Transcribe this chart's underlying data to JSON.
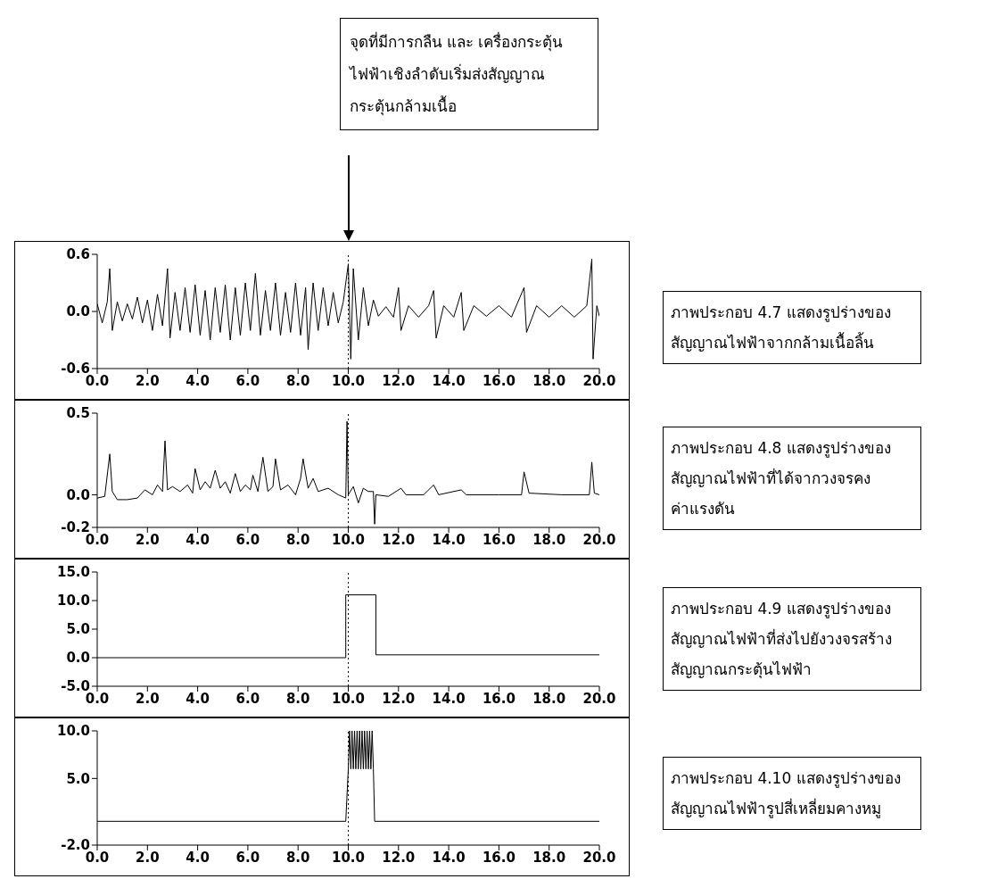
{
  "chart_data": [
    {
      "type": "line",
      "annotations": [
        "ภาพประกอบ 4.7 แสดงรูปร่างของ สัญญาณไฟฟ้าจากกล้ามเนื้อลิ้น",
        "จุดที่มีการกลืน และ เครื่องกระตุ้นไฟฟ้าเชิงลำดับเริ่มส่งสัญญาณกระตุ้นกล้ามเนื้อ"
      ],
      "x": [
        0,
        0.2,
        0.4,
        0.5,
        0.6,
        0.8,
        1.0,
        1.2,
        1.4,
        1.6,
        1.8,
        2.0,
        2.2,
        2.4,
        2.6,
        2.8,
        2.9,
        3.1,
        3.3,
        3.5,
        3.7,
        3.9,
        4.1,
        4.3,
        4.5,
        4.7,
        4.9,
        5.1,
        5.3,
        5.5,
        5.7,
        5.9,
        6.1,
        6.3,
        6.5,
        6.7,
        6.9,
        7.1,
        7.3,
        7.5,
        7.7,
        7.9,
        8.1,
        8.3,
        8.4,
        8.6,
        8.8,
        9.0,
        9.2,
        9.4,
        9.6,
        9.8,
        10.0,
        10.1,
        10.2,
        10.4,
        10.6,
        10.8,
        11.0,
        11.2,
        11.5,
        11.8,
        12.0,
        12.1,
        12.4,
        12.8,
        13.2,
        13.4,
        13.5,
        13.8,
        14.2,
        14.5,
        14.6,
        15.0,
        15.5,
        16.0,
        16.5,
        17.0,
        17.1,
        17.5,
        18.0,
        18.5,
        19.0,
        19.5,
        19.7,
        19.75,
        19.9,
        20
      ],
      "values": [
        0.08,
        -0.12,
        0.1,
        0.45,
        -0.2,
        0.1,
        -0.1,
        0.08,
        -0.08,
        0.15,
        -0.12,
        0.12,
        -0.2,
        0.18,
        -0.15,
        0.45,
        -0.28,
        0.2,
        -0.2,
        0.25,
        -0.22,
        0.28,
        -0.25,
        0.22,
        -0.3,
        0.25,
        -0.22,
        0.28,
        -0.3,
        0.25,
        -0.25,
        0.3,
        -0.2,
        0.4,
        -0.25,
        0.22,
        -0.2,
        0.3,
        -0.25,
        0.2,
        -0.22,
        0.3,
        -0.25,
        0.25,
        -0.4,
        0.3,
        -0.2,
        0.25,
        -0.15,
        0.2,
        -0.12,
        0.1,
        0.5,
        -0.5,
        0.45,
        -0.3,
        0.25,
        -0.15,
        0.12,
        -0.05,
        0.05,
        -0.06,
        0.25,
        -0.2,
        0.06,
        -0.06,
        0.06,
        0.22,
        -0.28,
        0.06,
        -0.06,
        0.2,
        -0.2,
        0.06,
        -0.05,
        0.06,
        -0.06,
        0.25,
        -0.22,
        0.06,
        -0.06,
        0.06,
        -0.06,
        0.06,
        0.55,
        -0.5,
        0.06,
        -0.05
      ],
      "color": "#000000",
      "xlim": [
        0,
        20
      ],
      "ylim": [
        -0.6,
        0.6
      ],
      "xticks": [
        {
          "value": 0,
          "label": "0.0"
        },
        {
          "value": 2,
          "label": "2.0"
        },
        {
          "value": 4,
          "label": "4.0"
        },
        {
          "value": 6,
          "label": "6.0"
        },
        {
          "value": 8,
          "label": "8.0"
        },
        {
          "value": 10,
          "label": "10.0"
        },
        {
          "value": 12,
          "label": "12.0"
        },
        {
          "value": 14,
          "label": "14.0"
        },
        {
          "value": 16,
          "label": "16.0"
        },
        {
          "value": 18,
          "label": "18.0"
        },
        {
          "value": 20,
          "label": "20.0"
        }
      ],
      "yticks": [
        -0.6,
        {
          "value": 0,
          "label": "0.0"
        },
        0.6
      ],
      "ref_lines": [
        {
          "axis": "x",
          "value": 10,
          "line_style": "dotted"
        }
      ]
    },
    {
      "type": "line",
      "annotations": [
        "ภาพประกอบ 4.8 แสดงรูปร่างของ สัญญาณไฟฟ้าที่ได้จากวงจรคงค่าแรงดัน"
      ],
      "x": [
        0,
        0.3,
        0.5,
        0.6,
        0.8,
        1.2,
        1.6,
        1.9,
        2.2,
        2.4,
        2.6,
        2.7,
        2.8,
        3.0,
        3.3,
        3.6,
        3.8,
        3.9,
        4.1,
        4.3,
        4.5,
        4.7,
        4.9,
        5.1,
        5.3,
        5.5,
        5.7,
        5.9,
        6.1,
        6.2,
        6.4,
        6.6,
        6.8,
        7.0,
        7.1,
        7.3,
        7.6,
        7.9,
        8.1,
        8.2,
        8.4,
        8.6,
        8.8,
        9.2,
        9.6,
        9.9,
        9.95,
        10.0,
        10.2,
        10.4,
        10.6,
        10.8,
        11.0,
        11.05,
        11.1,
        11.6,
        12.1,
        12.3,
        13.0,
        13.4,
        13.6,
        14.5,
        14.7,
        16.0,
        16.9,
        17.0,
        17.2,
        18.5,
        19.6,
        19.7,
        19.8,
        20
      ],
      "values": [
        -0.02,
        -0.01,
        0.25,
        0.02,
        -0.03,
        -0.03,
        -0.02,
        0.03,
        0.0,
        0.06,
        0.02,
        0.33,
        0.03,
        0.05,
        0.02,
        0.06,
        0.01,
        0.16,
        0.03,
        0.08,
        0.04,
        0.15,
        0.04,
        0.08,
        0.01,
        0.13,
        0.02,
        0.06,
        0.03,
        0.12,
        0.02,
        0.23,
        0.02,
        0.05,
        0.22,
        0.03,
        0.06,
        0.0,
        0.1,
        0.22,
        0.04,
        0.1,
        0.02,
        0.04,
        0.0,
        -0.02,
        0.45,
        0.0,
        0.05,
        -0.05,
        0.04,
        0.02,
        0.02,
        -0.18,
        0.0,
        -0.01,
        0.04,
        0.0,
        0.0,
        0.06,
        0.0,
        0.03,
        0.0,
        0.0,
        0.0,
        0.14,
        0.01,
        0.0,
        0.0,
        0.2,
        0.01,
        0.0
      ],
      "color": "#000000",
      "xlim": [
        0,
        20
      ],
      "ylim": [
        -0.2,
        0.5
      ],
      "xticks": [
        {
          "value": 0,
          "label": "0.0"
        },
        {
          "value": 2,
          "label": "2.0"
        },
        {
          "value": 4,
          "label": "4.0"
        },
        {
          "value": 6,
          "label": "6.0"
        },
        {
          "value": 8,
          "label": "8.0"
        },
        {
          "value": 10,
          "label": "10.0"
        },
        {
          "value": 12,
          "label": "12.0"
        },
        {
          "value": 14,
          "label": "14.0"
        },
        {
          "value": 16,
          "label": "16.0"
        },
        {
          "value": 18,
          "label": "18.0"
        },
        {
          "value": 20,
          "label": "20.0"
        }
      ],
      "yticks": [
        -0.2,
        {
          "value": 0,
          "label": "0.0"
        },
        0.5
      ],
      "ref_lines": [
        {
          "axis": "x",
          "value": 10,
          "line_style": "dotted"
        }
      ]
    },
    {
      "type": "line",
      "annotations": [
        "ภาพประกอบ 4.9 แสดงรูปร่างของ สัญญาณไฟฟ้าที่ส่งไปยังวงจรสร้าง สัญญาณกระตุ้นไฟฟ้า"
      ],
      "x": [
        0,
        9.9,
        9.9,
        11.1,
        11.1,
        20
      ],
      "values": [
        0,
        0,
        11,
        11,
        0.5,
        0.5
      ],
      "color": "#000000",
      "xlim": [
        0,
        20
      ],
      "ylim": [
        -5,
        15
      ],
      "xticks": [
        {
          "value": 0,
          "label": "0.0"
        },
        {
          "value": 2,
          "label": "2.0"
        },
        {
          "value": 4,
          "label": "4.0"
        },
        {
          "value": 6,
          "label": "6.0"
        },
        {
          "value": 8,
          "label": "8.0"
        },
        {
          "value": 10,
          "label": "10.0"
        },
        {
          "value": 12,
          "label": "12.0"
        },
        {
          "value": 14,
          "label": "14.0"
        },
        {
          "value": 16,
          "label": "16.0"
        },
        {
          "value": 18,
          "label": "18.0"
        },
        {
          "value": 20,
          "label": "20.0"
        }
      ],
      "yticks": [
        {
          "value": -5,
          "label": "-5.0"
        },
        {
          "value": 0,
          "label": "0.0"
        },
        {
          "value": 5,
          "label": "5.0"
        },
        {
          "value": 10,
          "label": "10.0"
        },
        {
          "value": 15,
          "label": "15.0"
        }
      ],
      "ref_lines": [
        {
          "axis": "x",
          "value": 10,
          "line_style": "dotted"
        }
      ]
    },
    {
      "type": "line",
      "annotations": [
        "ภาพประกอบ 4.10 แสดงรูปร่างของ สัญญาณไฟฟ้ารูปสี่เหลี่ยมคางหมู"
      ],
      "x": [
        0,
        9.9,
        10.0,
        10.05,
        10.1,
        10.15,
        10.2,
        10.25,
        10.3,
        10.35,
        10.4,
        10.45,
        10.5,
        10.55,
        10.6,
        10.65,
        10.7,
        10.75,
        10.8,
        10.85,
        10.9,
        10.95,
        11.0,
        11.05,
        20
      ],
      "values": [
        0.5,
        0.5,
        6,
        10,
        6,
        10,
        6,
        10,
        6,
        10,
        6,
        10,
        6,
        10,
        6,
        10,
        6,
        10,
        6,
        10,
        6,
        10,
        6,
        0.5,
        0.5
      ],
      "color": "#000000",
      "xlim": [
        0,
        20
      ],
      "ylim": [
        -2,
        10
      ],
      "xticks": [
        {
          "value": 0,
          "label": "0.0"
        },
        {
          "value": 2,
          "label": "2.0"
        },
        {
          "value": 4,
          "label": "4.0"
        },
        {
          "value": 6,
          "label": "6.0"
        },
        {
          "value": 8,
          "label": "8.0"
        },
        {
          "value": 10,
          "label": "10.0"
        },
        {
          "value": 12,
          "label": "12.0"
        },
        {
          "value": 14,
          "label": "14.0"
        },
        {
          "value": 16,
          "label": "16.0"
        },
        {
          "value": 18,
          "label": "18.0"
        },
        {
          "value": 20,
          "label": "20.0"
        }
      ],
      "yticks": [
        {
          "value": -2,
          "label": "-2.0"
        },
        {
          "value": 5,
          "label": "5.0"
        },
        {
          "value": 10,
          "label": "10.0"
        }
      ],
      "ref_lines": [
        {
          "axis": "x",
          "value": 10,
          "line_style": "dotted"
        }
      ]
    }
  ]
}
